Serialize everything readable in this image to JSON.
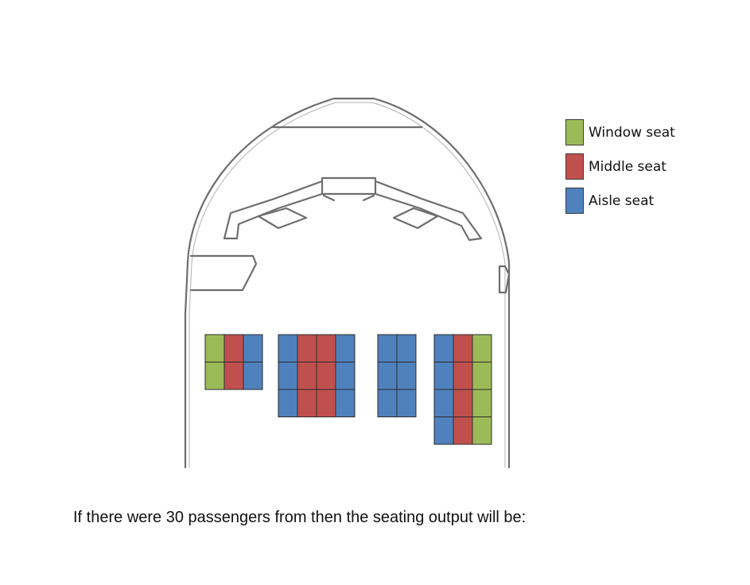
{
  "legend": [
    {
      "key": "window",
      "label": "Window seat",
      "color": "#9bbb59"
    },
    {
      "key": "middle",
      "label": "Middle seat",
      "color": "#c0504d"
    },
    {
      "key": "aisle",
      "label": "Aisle seat",
      "color": "#4f81bd"
    }
  ],
  "seat_blocks": [
    {
      "name": "block-1",
      "columns": [
        "window",
        "middle",
        "aisle"
      ],
      "rows": 2
    },
    {
      "name": "block-2",
      "columns": [
        "aisle",
        "middle",
        "middle",
        "aisle"
      ],
      "rows": 3
    },
    {
      "name": "block-3",
      "columns": [
        "aisle",
        "aisle"
      ],
      "rows": 3
    },
    {
      "name": "block-4",
      "columns": [
        "aisle",
        "middle",
        "window"
      ],
      "rows": 4
    }
  ],
  "caption": "If there were 30 passengers from then the seating output will be:"
}
